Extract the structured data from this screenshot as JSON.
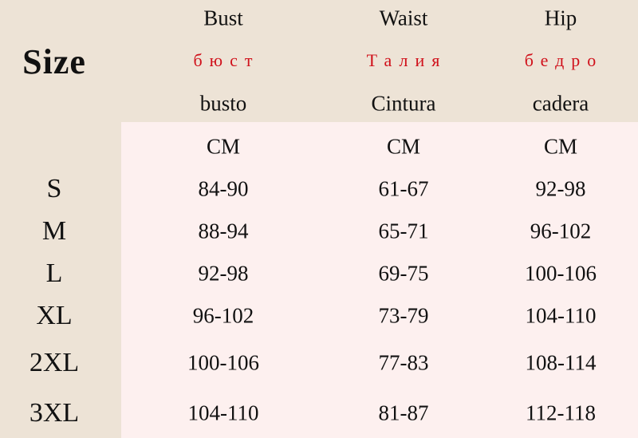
{
  "title": "Size",
  "columns": [
    {
      "en": "Bust",
      "ru": "бюст",
      "es": "busto",
      "unit": "CM"
    },
    {
      "en": "Waist",
      "ru": "Талия",
      "es": "Cintura",
      "unit": "CM"
    },
    {
      "en": "Hip",
      "ru": "бедро",
      "es": "cadera",
      "unit": "CM"
    }
  ],
  "rows": [
    {
      "size": "S",
      "values": [
        "84-90",
        "61-67",
        "92-98"
      ]
    },
    {
      "size": "M",
      "values": [
        "88-94",
        "65-71",
        "96-102"
      ]
    },
    {
      "size": "L",
      "values": [
        "92-98",
        "69-75",
        "100-106"
      ]
    },
    {
      "size": "XL",
      "values": [
        "96-102",
        "73-79",
        "104-110"
      ]
    },
    {
      "size": "2XL",
      "values": [
        "100-106",
        "77-83",
        "108-114"
      ]
    },
    {
      "size": "3XL",
      "values": [
        "104-110",
        "81-87",
        "112-118"
      ]
    }
  ],
  "colors": {
    "background": "#ede3d6",
    "table_background": "#fdf0ef",
    "russian_text": "#d0101a"
  }
}
